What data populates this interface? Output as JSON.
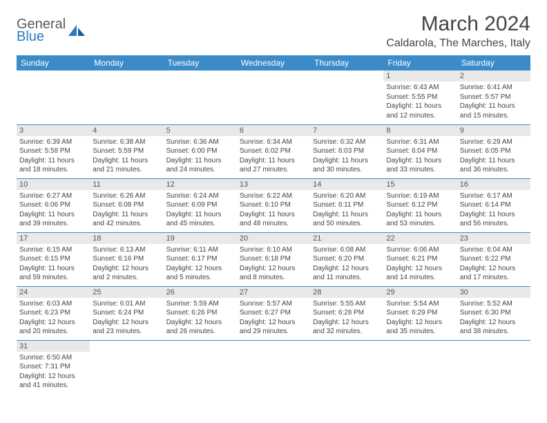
{
  "logo": {
    "text1": "General",
    "text2": "Blue"
  },
  "title": "March 2024",
  "location": "Caldarola, The Marches, Italy",
  "colors": {
    "header_bg": "#3b8bc9",
    "header_fg": "#ffffff",
    "daynum_bg": "#e9e9e9",
    "row_border": "#3b8bc9",
    "logo_gray": "#5a5a5a",
    "logo_blue": "#2b7bbf"
  },
  "weekdays": [
    "Sunday",
    "Monday",
    "Tuesday",
    "Wednesday",
    "Thursday",
    "Friday",
    "Saturday"
  ],
  "weeks": [
    [
      {
        "day": "",
        "sunrise": "",
        "sunset": "",
        "daylight": ""
      },
      {
        "day": "",
        "sunrise": "",
        "sunset": "",
        "daylight": ""
      },
      {
        "day": "",
        "sunrise": "",
        "sunset": "",
        "daylight": ""
      },
      {
        "day": "",
        "sunrise": "",
        "sunset": "",
        "daylight": ""
      },
      {
        "day": "",
        "sunrise": "",
        "sunset": "",
        "daylight": ""
      },
      {
        "day": "1",
        "sunrise": "Sunrise: 6:43 AM",
        "sunset": "Sunset: 5:55 PM",
        "daylight": "Daylight: 11 hours and 12 minutes."
      },
      {
        "day": "2",
        "sunrise": "Sunrise: 6:41 AM",
        "sunset": "Sunset: 5:57 PM",
        "daylight": "Daylight: 11 hours and 15 minutes."
      }
    ],
    [
      {
        "day": "3",
        "sunrise": "Sunrise: 6:39 AM",
        "sunset": "Sunset: 5:58 PM",
        "daylight": "Daylight: 11 hours and 18 minutes."
      },
      {
        "day": "4",
        "sunrise": "Sunrise: 6:38 AM",
        "sunset": "Sunset: 5:59 PM",
        "daylight": "Daylight: 11 hours and 21 minutes."
      },
      {
        "day": "5",
        "sunrise": "Sunrise: 6:36 AM",
        "sunset": "Sunset: 6:00 PM",
        "daylight": "Daylight: 11 hours and 24 minutes."
      },
      {
        "day": "6",
        "sunrise": "Sunrise: 6:34 AM",
        "sunset": "Sunset: 6:02 PM",
        "daylight": "Daylight: 11 hours and 27 minutes."
      },
      {
        "day": "7",
        "sunrise": "Sunrise: 6:32 AM",
        "sunset": "Sunset: 6:03 PM",
        "daylight": "Daylight: 11 hours and 30 minutes."
      },
      {
        "day": "8",
        "sunrise": "Sunrise: 6:31 AM",
        "sunset": "Sunset: 6:04 PM",
        "daylight": "Daylight: 11 hours and 33 minutes."
      },
      {
        "day": "9",
        "sunrise": "Sunrise: 6:29 AM",
        "sunset": "Sunset: 6:05 PM",
        "daylight": "Daylight: 11 hours and 36 minutes."
      }
    ],
    [
      {
        "day": "10",
        "sunrise": "Sunrise: 6:27 AM",
        "sunset": "Sunset: 6:06 PM",
        "daylight": "Daylight: 11 hours and 39 minutes."
      },
      {
        "day": "11",
        "sunrise": "Sunrise: 6:26 AM",
        "sunset": "Sunset: 6:08 PM",
        "daylight": "Daylight: 11 hours and 42 minutes."
      },
      {
        "day": "12",
        "sunrise": "Sunrise: 6:24 AM",
        "sunset": "Sunset: 6:09 PM",
        "daylight": "Daylight: 11 hours and 45 minutes."
      },
      {
        "day": "13",
        "sunrise": "Sunrise: 6:22 AM",
        "sunset": "Sunset: 6:10 PM",
        "daylight": "Daylight: 11 hours and 48 minutes."
      },
      {
        "day": "14",
        "sunrise": "Sunrise: 6:20 AM",
        "sunset": "Sunset: 6:11 PM",
        "daylight": "Daylight: 11 hours and 50 minutes."
      },
      {
        "day": "15",
        "sunrise": "Sunrise: 6:19 AM",
        "sunset": "Sunset: 6:12 PM",
        "daylight": "Daylight: 11 hours and 53 minutes."
      },
      {
        "day": "16",
        "sunrise": "Sunrise: 6:17 AM",
        "sunset": "Sunset: 6:14 PM",
        "daylight": "Daylight: 11 hours and 56 minutes."
      }
    ],
    [
      {
        "day": "17",
        "sunrise": "Sunrise: 6:15 AM",
        "sunset": "Sunset: 6:15 PM",
        "daylight": "Daylight: 11 hours and 59 minutes."
      },
      {
        "day": "18",
        "sunrise": "Sunrise: 6:13 AM",
        "sunset": "Sunset: 6:16 PM",
        "daylight": "Daylight: 12 hours and 2 minutes."
      },
      {
        "day": "19",
        "sunrise": "Sunrise: 6:11 AM",
        "sunset": "Sunset: 6:17 PM",
        "daylight": "Daylight: 12 hours and 5 minutes."
      },
      {
        "day": "20",
        "sunrise": "Sunrise: 6:10 AM",
        "sunset": "Sunset: 6:18 PM",
        "daylight": "Daylight: 12 hours and 8 minutes."
      },
      {
        "day": "21",
        "sunrise": "Sunrise: 6:08 AM",
        "sunset": "Sunset: 6:20 PM",
        "daylight": "Daylight: 12 hours and 11 minutes."
      },
      {
        "day": "22",
        "sunrise": "Sunrise: 6:06 AM",
        "sunset": "Sunset: 6:21 PM",
        "daylight": "Daylight: 12 hours and 14 minutes."
      },
      {
        "day": "23",
        "sunrise": "Sunrise: 6:04 AM",
        "sunset": "Sunset: 6:22 PM",
        "daylight": "Daylight: 12 hours and 17 minutes."
      }
    ],
    [
      {
        "day": "24",
        "sunrise": "Sunrise: 6:03 AM",
        "sunset": "Sunset: 6:23 PM",
        "daylight": "Daylight: 12 hours and 20 minutes."
      },
      {
        "day": "25",
        "sunrise": "Sunrise: 6:01 AM",
        "sunset": "Sunset: 6:24 PM",
        "daylight": "Daylight: 12 hours and 23 minutes."
      },
      {
        "day": "26",
        "sunrise": "Sunrise: 5:59 AM",
        "sunset": "Sunset: 6:26 PM",
        "daylight": "Daylight: 12 hours and 26 minutes."
      },
      {
        "day": "27",
        "sunrise": "Sunrise: 5:57 AM",
        "sunset": "Sunset: 6:27 PM",
        "daylight": "Daylight: 12 hours and 29 minutes."
      },
      {
        "day": "28",
        "sunrise": "Sunrise: 5:55 AM",
        "sunset": "Sunset: 6:28 PM",
        "daylight": "Daylight: 12 hours and 32 minutes."
      },
      {
        "day": "29",
        "sunrise": "Sunrise: 5:54 AM",
        "sunset": "Sunset: 6:29 PM",
        "daylight": "Daylight: 12 hours and 35 minutes."
      },
      {
        "day": "30",
        "sunrise": "Sunrise: 5:52 AM",
        "sunset": "Sunset: 6:30 PM",
        "daylight": "Daylight: 12 hours and 38 minutes."
      }
    ],
    [
      {
        "day": "31",
        "sunrise": "Sunrise: 6:50 AM",
        "sunset": "Sunset: 7:31 PM",
        "daylight": "Daylight: 12 hours and 41 minutes."
      },
      {
        "day": "",
        "sunrise": "",
        "sunset": "",
        "daylight": ""
      },
      {
        "day": "",
        "sunrise": "",
        "sunset": "",
        "daylight": ""
      },
      {
        "day": "",
        "sunrise": "",
        "sunset": "",
        "daylight": ""
      },
      {
        "day": "",
        "sunrise": "",
        "sunset": "",
        "daylight": ""
      },
      {
        "day": "",
        "sunrise": "",
        "sunset": "",
        "daylight": ""
      },
      {
        "day": "",
        "sunrise": "",
        "sunset": "",
        "daylight": ""
      }
    ]
  ]
}
